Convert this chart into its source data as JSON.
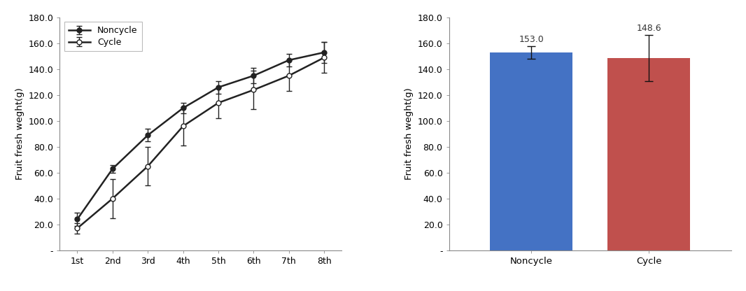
{
  "line_x": [
    1,
    2,
    3,
    4,
    5,
    6,
    7,
    8
  ],
  "line_x_labels": [
    "1st",
    "2nd",
    "3rd",
    "4th",
    "5th",
    "6th",
    "7th",
    "8th"
  ],
  "noncycle_y": [
    24.0,
    63.0,
    89.0,
    110.0,
    126.0,
    135.0,
    147.0,
    153.0
  ],
  "noncycle_err": [
    5.0,
    3.0,
    5.0,
    4.0,
    5.0,
    6.0,
    5.0,
    8.0
  ],
  "cycle_y": [
    17.0,
    40.0,
    65.0,
    96.0,
    114.0,
    124.0,
    135.0,
    149.0
  ],
  "cycle_err": [
    4.0,
    15.0,
    15.0,
    15.0,
    12.0,
    15.0,
    12.0,
    12.0
  ],
  "line_ylim": [
    0,
    180
  ],
  "line_yticks": [
    0,
    20,
    40,
    60,
    80,
    100,
    120,
    140,
    160,
    180
  ],
  "line_ytick_labels": [
    "-",
    "20.0",
    "40.0",
    "60.0",
    "80.0",
    "100.0",
    "120.0",
    "140.0",
    "160.0",
    "180.0"
  ],
  "ylabel": "Fruit fresh weght(g)",
  "noncycle_label": "Noncycle",
  "cycle_label": "Cycle",
  "bar_categories": [
    "Noncycle",
    "Cycle"
  ],
  "bar_values": [
    153.0,
    148.6
  ],
  "bar_errors": [
    5.0,
    18.0
  ],
  "bar_colors": [
    "#4472C4",
    "#C0504D"
  ],
  "bar_ylim": [
    0,
    180
  ],
  "bar_yticks": [
    0,
    20,
    40,
    60,
    80,
    100,
    120,
    140,
    160,
    180
  ],
  "bar_ytick_labels": [
    "-",
    "20.0",
    "40.0",
    "60.0",
    "80.0",
    "100.0",
    "120.0",
    "140.0",
    "160.0",
    "180.0"
  ],
  "bar_annotation_noncycle": "153.0",
  "bar_annotation_cycle": "148.6",
  "line_color": "#222222",
  "background_color": "#ffffff"
}
